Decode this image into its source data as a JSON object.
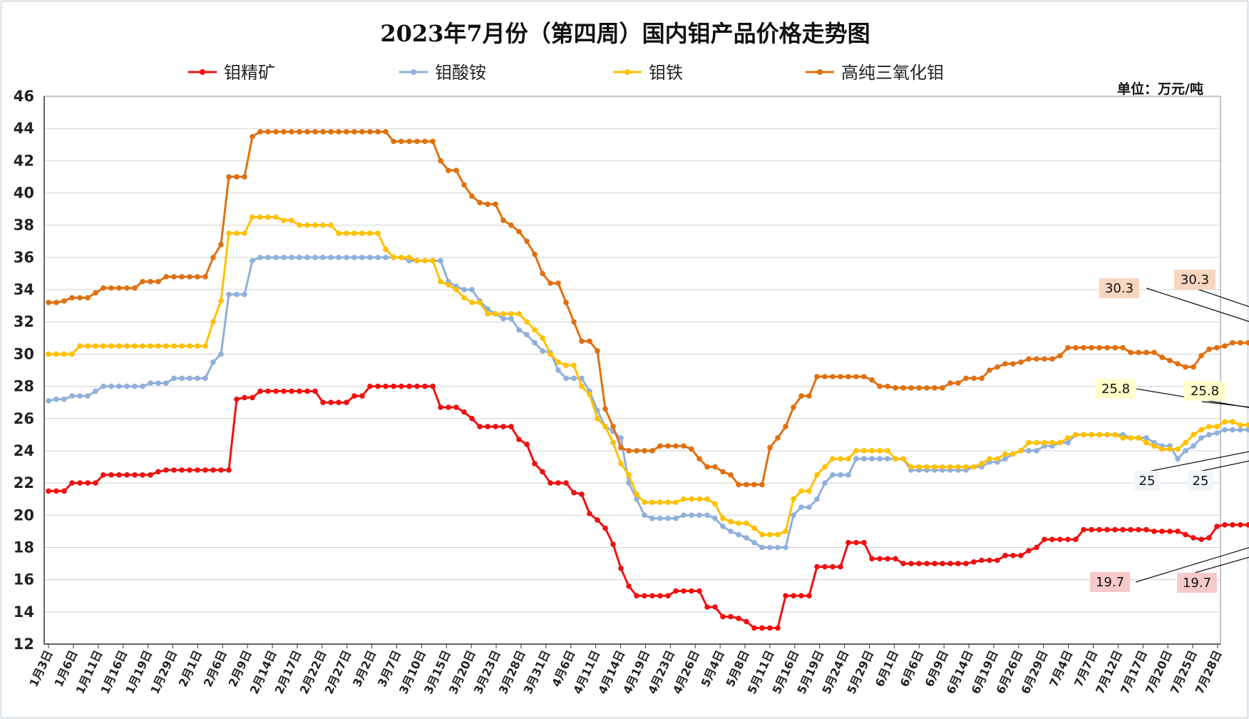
{
  "chart_data": {
    "type": "line",
    "title": "2023年7月份（第四周）国内钼产品价格走势图",
    "unit_label": "单位：万元/吨",
    "ylim": [
      12,
      46
    ],
    "yticks": [
      12,
      14,
      16,
      18,
      20,
      22,
      24,
      26,
      28,
      30,
      32,
      34,
      36,
      38,
      40,
      42,
      44,
      46
    ],
    "grid": true,
    "legend_position": "top",
    "xtick_labels": [
      "1月3日",
      "1月6日",
      "1月11日",
      "1月16日",
      "1月19日",
      "1月29日",
      "2月1日",
      "2月6日",
      "2月9日",
      "2月14日",
      "2月17日",
      "2月22日",
      "2月27日",
      "3月2日",
      "3月7日",
      "3月10日",
      "3月15日",
      "3月20日",
      "3月23日",
      "3月28日",
      "3月31日",
      "4月6日",
      "4月11日",
      "4月14日",
      "4月19日",
      "4月23日",
      "4月26日",
      "5月4日",
      "5月8日",
      "5月11日",
      "5月16日",
      "5月19日",
      "5月24日",
      "5月29日",
      "6月1日",
      "6月6日",
      "6月9日",
      "6月14日",
      "6月19日",
      "6月26日",
      "6月29日",
      "7月4日",
      "7月7日",
      "7月12日",
      "7月17日",
      "7月20日",
      "7月25日",
      "7月28日"
    ],
    "series": [
      {
        "name": "钼精矿",
        "color": "#ee1111",
        "values": [
          21.5,
          21.5,
          21.5,
          22.0,
          22.0,
          22.0,
          22.0,
          22.5,
          22.5,
          22.5,
          22.5,
          22.5,
          22.5,
          22.5,
          22.7,
          22.8,
          22.8,
          22.8,
          22.8,
          22.8,
          22.8,
          22.8,
          22.8,
          22.8,
          27.2,
          27.3,
          27.3,
          27.7,
          27.7,
          27.7,
          27.7,
          27.7,
          27.7,
          27.7,
          27.7,
          27.0,
          27.0,
          27.0,
          27.0,
          27.4,
          27.4,
          28.0,
          28.0,
          28.0,
          28.0,
          28.0,
          28.0,
          28.0,
          28.0,
          28.0,
          26.7,
          26.7,
          26.7,
          26.4,
          26.0,
          25.5,
          25.5,
          25.5,
          25.5,
          25.5,
          24.7,
          24.4,
          23.2,
          22.7,
          22.0,
          22.0,
          22.0,
          21.4,
          21.3,
          20.1,
          19.7,
          19.2,
          18.2,
          16.7,
          15.6,
          15.0,
          15.0,
          15.0,
          15.0,
          15.0,
          15.3,
          15.3,
          15.3,
          15.3,
          14.3,
          14.3,
          13.7,
          13.7,
          13.6,
          13.4,
          13.0,
          13.0,
          13.0,
          13.0,
          15.0,
          15.0,
          15.0,
          15.0,
          16.8,
          16.8,
          16.8,
          16.8,
          18.3,
          18.3,
          18.3,
          17.3,
          17.3,
          17.3,
          17.3,
          17.0,
          17.0,
          17.0,
          17.0,
          17.0,
          17.0,
          17.0,
          17.0,
          17.0,
          17.1,
          17.2,
          17.2,
          17.2,
          17.5,
          17.5,
          17.5,
          17.8,
          18.0,
          18.5,
          18.5,
          18.5,
          18.5,
          18.5,
          19.1,
          19.1,
          19.1,
          19.1,
          19.1,
          19.1,
          19.1,
          19.1,
          19.1,
          19.0,
          19.0,
          19.0,
          19.0,
          18.8,
          18.6,
          18.5,
          18.6,
          19.3,
          19.4,
          19.4,
          19.4,
          19.4,
          19.4,
          19.4,
          19.4,
          19.4,
          19.4,
          19.4,
          19.4,
          19.6,
          19.6,
          19.6,
          19.6,
          19.6,
          19.6,
          19.6,
          19.6,
          19.6,
          19.6,
          19.6,
          19.6,
          19.7,
          19.7,
          19.7,
          19.7,
          19.7,
          19.7,
          19.7,
          19.7
        ]
      },
      {
        "name": "钼酸铵",
        "color": "#8fb0da",
        "values": [
          27.1,
          27.2,
          27.2,
          27.4,
          27.4,
          27.4,
          27.7,
          28.0,
          28.0,
          28.0,
          28.0,
          28.0,
          28.0,
          28.2,
          28.2,
          28.2,
          28.5,
          28.5,
          28.5,
          28.5,
          28.5,
          29.5,
          30.0,
          33.7,
          33.7,
          33.7,
          35.8,
          36.0,
          36.0,
          36.0,
          36.0,
          36.0,
          36.0,
          36.0,
          36.0,
          36.0,
          36.0,
          36.0,
          36.0,
          36.0,
          36.0,
          36.0,
          36.0,
          36.0,
          36.0,
          36.0,
          35.8,
          35.8,
          35.8,
          35.8,
          35.8,
          34.5,
          34.2,
          34.0,
          34.0,
          33.3,
          32.8,
          32.5,
          32.2,
          32.2,
          31.5,
          31.2,
          30.7,
          30.2,
          30.1,
          29.0,
          28.5,
          28.5,
          28.5,
          27.7,
          26.5,
          25.5,
          25.2,
          24.8,
          22.0,
          21.0,
          20.0,
          19.8,
          19.8,
          19.8,
          19.8,
          20.0,
          20.0,
          20.0,
          20.0,
          19.8,
          19.3,
          19.0,
          18.8,
          18.6,
          18.3,
          18.0,
          18.0,
          18.0,
          18.0,
          20.0,
          20.5,
          20.5,
          21.0,
          22.0,
          22.5,
          22.5,
          22.5,
          23.5,
          23.5,
          23.5,
          23.5,
          23.5,
          23.5,
          23.5,
          22.8,
          22.8,
          22.8,
          22.8,
          22.8,
          22.8,
          22.8,
          22.8,
          23.0,
          23.0,
          23.3,
          23.3,
          23.5,
          23.8,
          24.0,
          24.0,
          24.0,
          24.3,
          24.3,
          24.5,
          24.5,
          25.0,
          25.0,
          25.0,
          25.0,
          25.0,
          25.0,
          25.0,
          24.8,
          24.8,
          24.8,
          24.5,
          24.3,
          24.3,
          23.5,
          24.0,
          24.3,
          24.8,
          25.0,
          25.1,
          25.3,
          25.3,
          25.3,
          25.3,
          25.3,
          25.1,
          25.1,
          25.1,
          25.0,
          25.0,
          25.0,
          25.0,
          25.0,
          25.0,
          25.0,
          25.0,
          25.0,
          25.0,
          25.0,
          25.0,
          25.0,
          25.0,
          25.0,
          25.0,
          25.0,
          25.0,
          25.0,
          25.0,
          25.0,
          25.0
        ]
      },
      {
        "name": "钼铁",
        "color": "#ffc000",
        "values": [
          30.0,
          30.0,
          30.0,
          30.0,
          30.5,
          30.5,
          30.5,
          30.5,
          30.5,
          30.5,
          30.5,
          30.5,
          30.5,
          30.5,
          30.5,
          30.5,
          30.5,
          30.5,
          30.5,
          30.5,
          30.5,
          32.0,
          33.3,
          37.5,
          37.5,
          37.5,
          38.5,
          38.5,
          38.5,
          38.5,
          38.3,
          38.3,
          38.0,
          38.0,
          38.0,
          38.0,
          38.0,
          37.5,
          37.5,
          37.5,
          37.5,
          37.5,
          37.5,
          36.5,
          36.0,
          36.0,
          36.0,
          35.8,
          35.8,
          35.8,
          34.5,
          34.3,
          34.0,
          33.5,
          33.2,
          33.2,
          32.5,
          32.5,
          32.5,
          32.5,
          32.5,
          32.0,
          31.5,
          31.0,
          30.0,
          29.5,
          29.3,
          29.3,
          28.0,
          27.5,
          26.0,
          25.5,
          24.5,
          23.2,
          22.5,
          21.3,
          20.8,
          20.8,
          20.8,
          20.8,
          20.8,
          21.0,
          21.0,
          21.0,
          21.0,
          20.7,
          19.8,
          19.6,
          19.5,
          19.5,
          19.2,
          18.8,
          18.8,
          18.8,
          19.0,
          21.0,
          21.5,
          21.5,
          22.5,
          23.0,
          23.5,
          23.5,
          23.5,
          24.0,
          24.0,
          24.0,
          24.0,
          24.0,
          23.5,
          23.5,
          23.0,
          23.0,
          23.0,
          23.0,
          23.0,
          23.0,
          23.0,
          23.0,
          23.0,
          23.2,
          23.5,
          23.5,
          23.8,
          23.8,
          24.0,
          24.5,
          24.5,
          24.5,
          24.5,
          24.5,
          24.8,
          25.0,
          25.0,
          25.0,
          25.0,
          25.0,
          25.0,
          24.8,
          24.8,
          24.8,
          24.5,
          24.3,
          24.1,
          24.1,
          24.1,
          24.5,
          25.0,
          25.3,
          25.5,
          25.5,
          25.8,
          25.8,
          25.6,
          25.6,
          25.5,
          25.4,
          25.4,
          25.4,
          25.4,
          25.6,
          25.8,
          25.8,
          25.8,
          25.8,
          25.8,
          25.8,
          25.8,
          25.8,
          25.8,
          25.8,
          25.8,
          25.8,
          25.8,
          25.8,
          25.8,
          25.8,
          25.8,
          25.8,
          25.8,
          25.8,
          25.8,
          25.8
        ]
      },
      {
        "name": "高纯三氧化钼",
        "color": "#e07010",
        "values": [
          33.2,
          33.2,
          33.3,
          33.5,
          33.5,
          33.5,
          33.8,
          34.1,
          34.1,
          34.1,
          34.1,
          34.1,
          34.5,
          34.5,
          34.5,
          34.8,
          34.8,
          34.8,
          34.8,
          34.8,
          34.8,
          36.0,
          36.8,
          41.0,
          41.0,
          41.0,
          43.5,
          43.8,
          43.8,
          43.8,
          43.8,
          43.8,
          43.8,
          43.8,
          43.8,
          43.8,
          43.8,
          43.8,
          43.8,
          43.8,
          43.8,
          43.8,
          43.8,
          43.8,
          43.2,
          43.2,
          43.2,
          43.2,
          43.2,
          43.2,
          42.0,
          41.4,
          41.4,
          40.5,
          39.8,
          39.4,
          39.3,
          39.3,
          38.3,
          38.0,
          37.6,
          37.0,
          36.2,
          35.0,
          34.4,
          34.4,
          33.2,
          32.0,
          30.8,
          30.8,
          30.2,
          26.6,
          25.5,
          24.2,
          24.0,
          24.0,
          24.0,
          24.0,
          24.3,
          24.3,
          24.3,
          24.3,
          24.1,
          23.5,
          23.0,
          23.0,
          22.7,
          22.5,
          21.9,
          21.9,
          21.9,
          21.9,
          24.2,
          24.8,
          25.5,
          26.7,
          27.4,
          27.4,
          28.6,
          28.6,
          28.6,
          28.6,
          28.6,
          28.6,
          28.6,
          28.4,
          28.0,
          28.0,
          27.9,
          27.9,
          27.9,
          27.9,
          27.9,
          27.9,
          27.9,
          28.2,
          28.2,
          28.5,
          28.5,
          28.5,
          29.0,
          29.2,
          29.4,
          29.4,
          29.5,
          29.7,
          29.7,
          29.7,
          29.7,
          29.9,
          30.4,
          30.4,
          30.4,
          30.4,
          30.4,
          30.4,
          30.4,
          30.4,
          30.1,
          30.1,
          30.1,
          30.1,
          29.8,
          29.6,
          29.4,
          29.2,
          29.2,
          29.9,
          30.3,
          30.4,
          30.5,
          30.7,
          30.7,
          30.7,
          30.7,
          30.4,
          30.4,
          30.4,
          30.3,
          30.3,
          30.3,
          30.3,
          30.3,
          30.3,
          30.3,
          30.3,
          30.3,
          30.3,
          30.3,
          30.3,
          30.3,
          30.3,
          30.3,
          30.3,
          30.3,
          30.3,
          30.3,
          30.3,
          30.3,
          30.3,
          30.3,
          30.3,
          30.3
        ]
      }
    ],
    "annotations": [
      {
        "text": "30.3",
        "series": 3,
        "fill": "#f8d6c1"
      },
      {
        "text": "30.3",
        "series": 3,
        "fill": "#f8d6c1"
      },
      {
        "text": "25.8",
        "series": 2,
        "fill": "#ffffcc"
      },
      {
        "text": "25.8",
        "series": 2,
        "fill": "#ffffcc"
      },
      {
        "text": "25",
        "series": 1,
        "fill": "#f2f6fa"
      },
      {
        "text": "25",
        "series": 1,
        "fill": "#f2f6fa"
      },
      {
        "text": "19.7",
        "series": 0,
        "fill": "#f7c9c9"
      },
      {
        "text": "19.7",
        "series": 0,
        "fill": "#f7c9c9"
      }
    ]
  }
}
